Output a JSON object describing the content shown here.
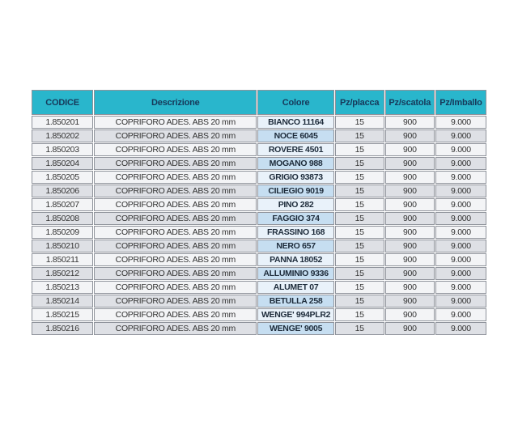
{
  "table": {
    "columns": [
      "CODICE",
      "Descrizione",
      "Colore",
      "Pz/placca",
      "Pz/scatola",
      "Pz/Imballo"
    ],
    "rows": [
      [
        "1.850201",
        "COPRIFORO ADES. ABS 20 mm",
        "BIANCO 11164",
        "15",
        "900",
        "9.000"
      ],
      [
        "1.850202",
        "COPRIFORO ADES. ABS 20 mm",
        "NOCE 6045",
        "15",
        "900",
        "9.000"
      ],
      [
        "1.850203",
        "COPRIFORO ADES. ABS 20 mm",
        "ROVERE 4501",
        "15",
        "900",
        "9.000"
      ],
      [
        "1.850204",
        "COPRIFORO ADES. ABS 20 mm",
        "MOGANO 988",
        "15",
        "900",
        "9.000"
      ],
      [
        "1.850205",
        "COPRIFORO ADES. ABS 20 mm",
        "GRIGIO 93873",
        "15",
        "900",
        "9.000"
      ],
      [
        "1.850206",
        "COPRIFORO ADES. ABS 20 mm",
        "CILIEGIO 9019",
        "15",
        "900",
        "9.000"
      ],
      [
        "1.850207",
        "COPRIFORO ADES. ABS 20 mm",
        "PINO 282",
        "15",
        "900",
        "9.000"
      ],
      [
        "1.850208",
        "COPRIFORO ADES. ABS 20 mm",
        "FAGGIO 374",
        "15",
        "900",
        "9.000"
      ],
      [
        "1.850209",
        "COPRIFORO ADES. ABS 20 mm",
        "FRASSINO 168",
        "15",
        "900",
        "9.000"
      ],
      [
        "1.850210",
        "COPRIFORO ADES. ABS 20 mm",
        "NERO 657",
        "15",
        "900",
        "9.000"
      ],
      [
        "1.850211",
        "COPRIFORO ADES. ABS 20 mm",
        "PANNA 18052",
        "15",
        "900",
        "9.000"
      ],
      [
        "1.850212",
        "COPRIFORO ADES. ABS 20 mm",
        "ALLUMINIO 9336",
        "15",
        "900",
        "9.000"
      ],
      [
        "1.850213",
        "COPRIFORO ADES. ABS 20 mm",
        "ALUMET 07",
        "15",
        "900",
        "9.000"
      ],
      [
        "1.850214",
        "COPRIFORO ADES. ABS 20 mm",
        "BETULLA 258",
        "15",
        "900",
        "9.000"
      ],
      [
        "1.850215",
        "COPRIFORO ADES. ABS 20 mm",
        "WENGE' 994PLR2",
        "15",
        "900",
        "9.000"
      ],
      [
        "1.850216",
        "COPRIFORO ADES. ABS 20 mm",
        "WENGE' 9005",
        "15",
        "900",
        "9.000"
      ]
    ]
  },
  "colors": {
    "header_bg": "#29b6cc",
    "header_text": "#17395a",
    "row_odd_bg": "#f3f4f6",
    "row_even_bg": "#dee0e5",
    "colore_odd_bg": "#e9f2fa",
    "colore_even_bg": "#c6def1",
    "cell_border": "#8f939b",
    "cell_text": "#333333",
    "colore_text": "#1d2b3a",
    "page_bg": "#ffffff"
  }
}
